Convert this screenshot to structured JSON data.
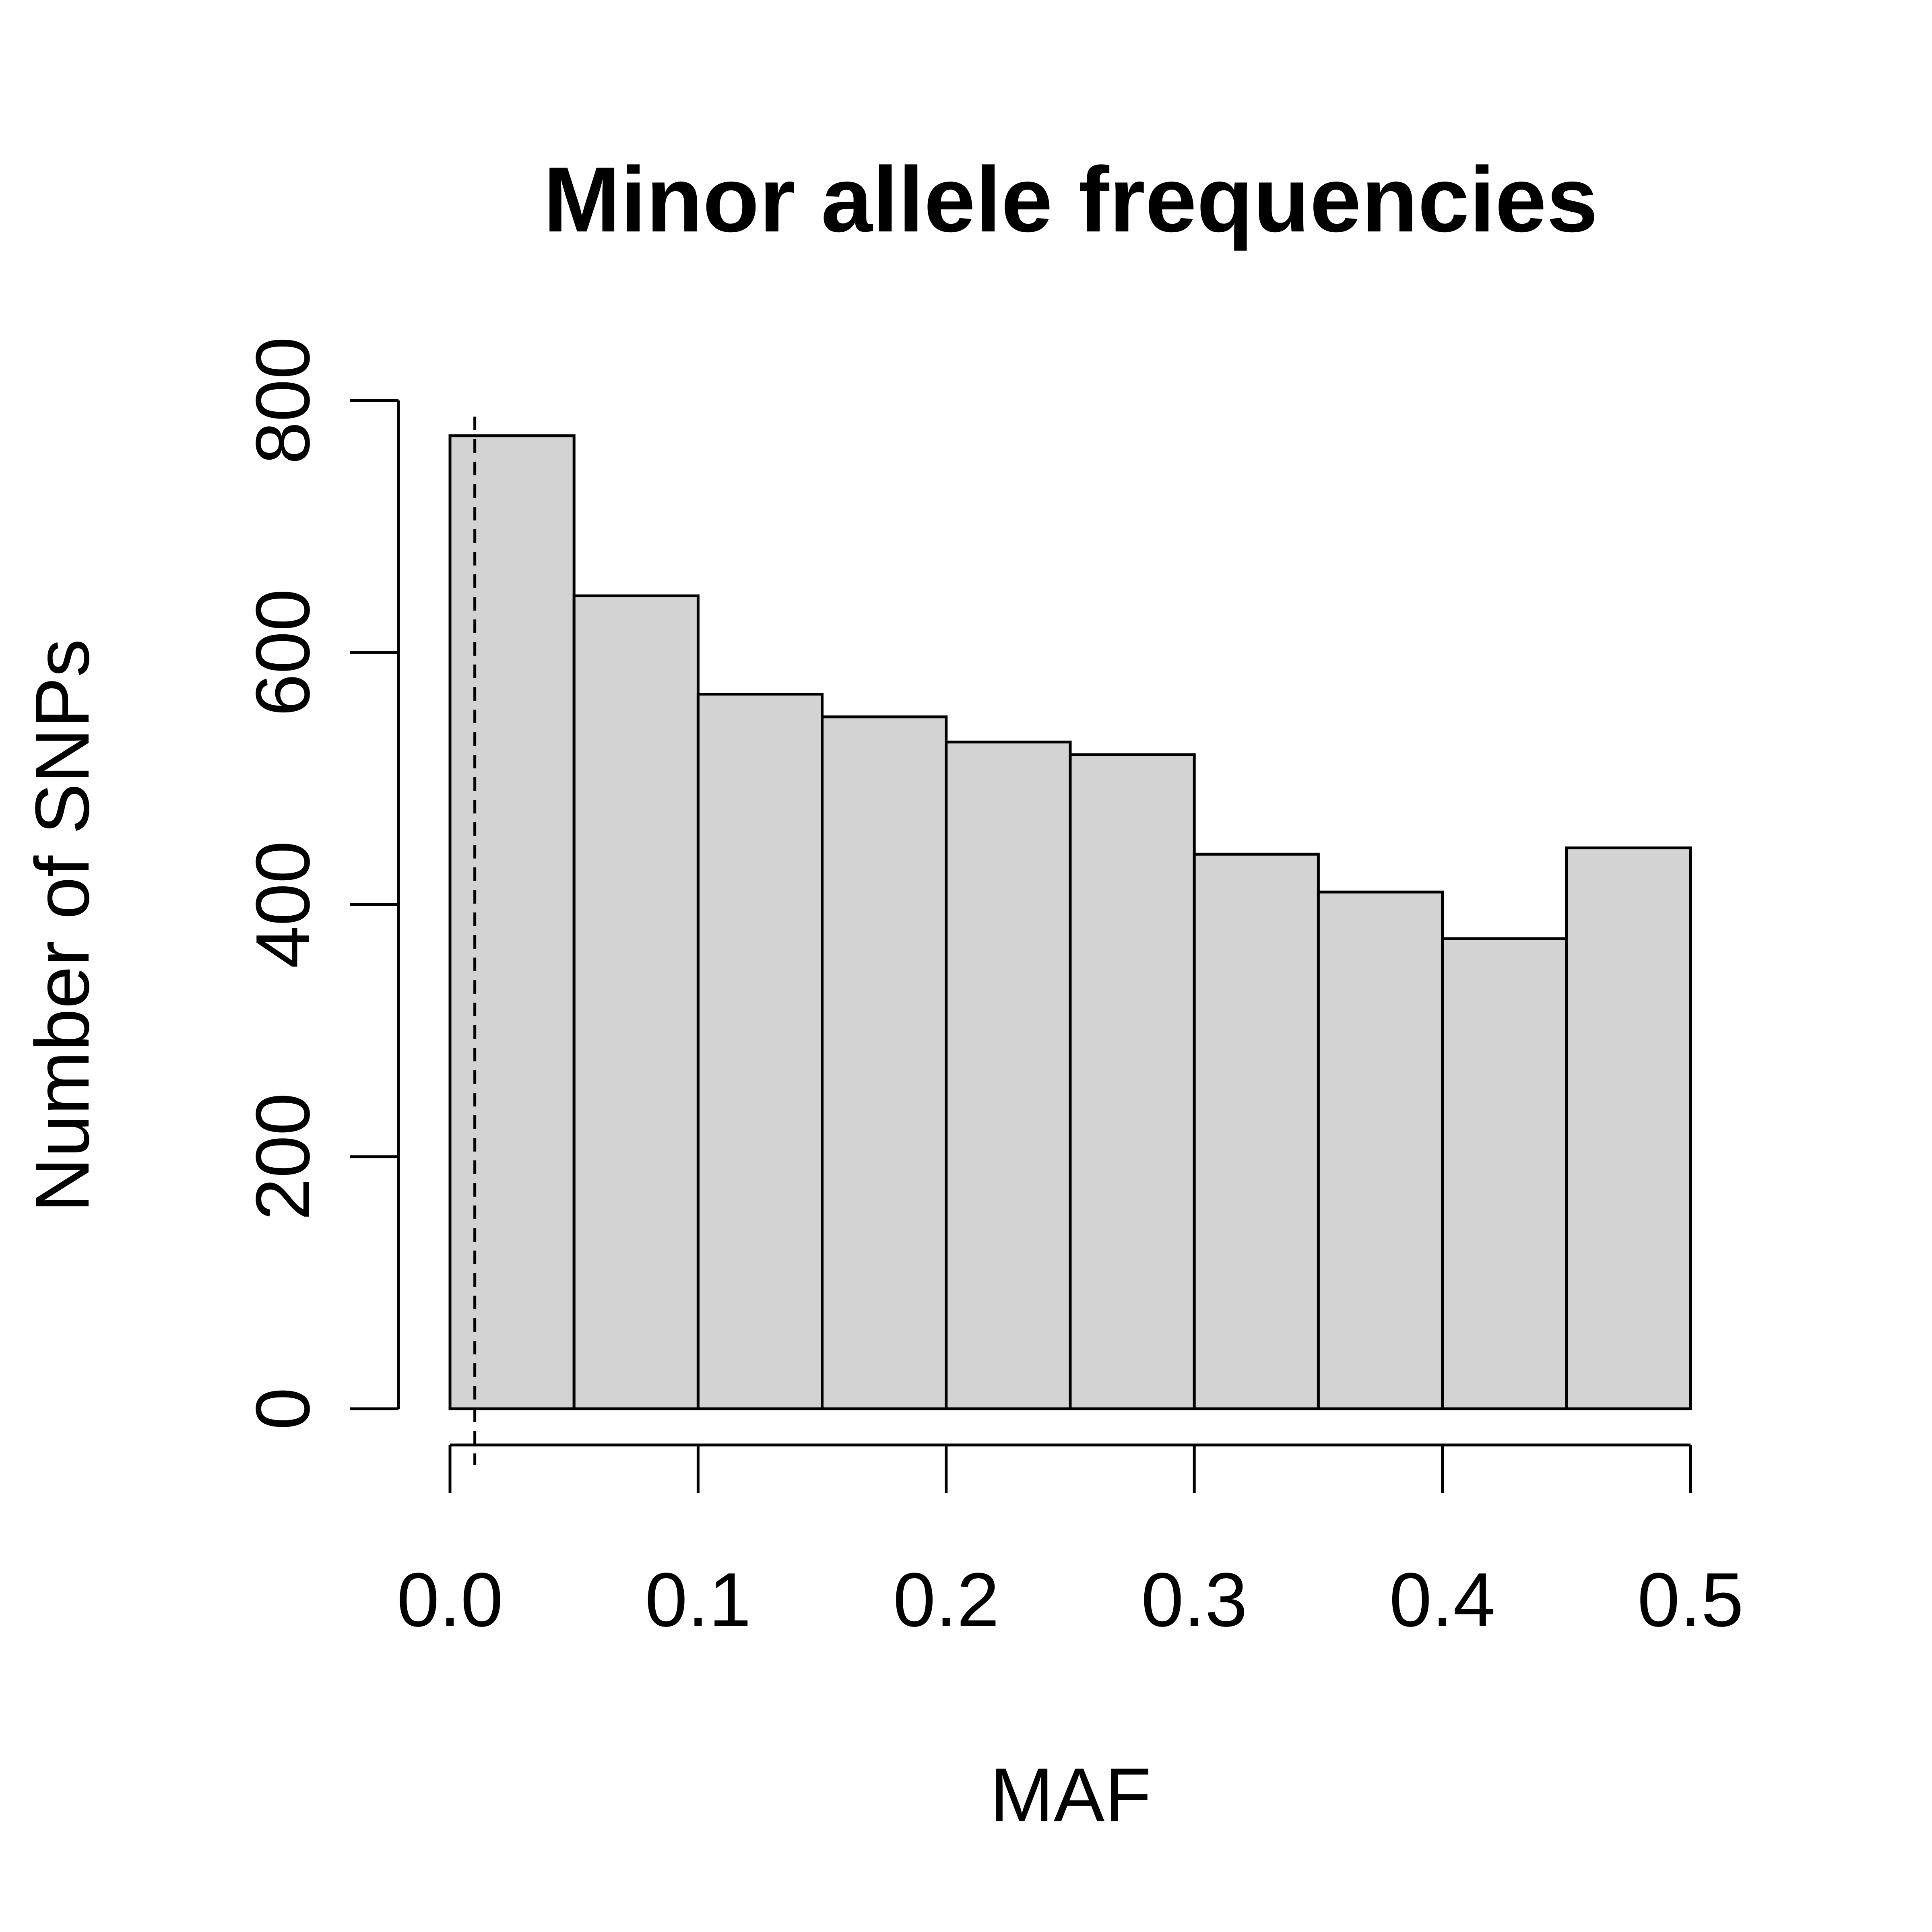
{
  "chart_data": {
    "type": "bar",
    "title": "Minor allele frequencies",
    "xlabel": "MAF",
    "ylabel": "Number of SNPs",
    "bins": [
      {
        "start": 0.0,
        "end": 0.05,
        "count": 772
      },
      {
        "start": 0.05,
        "end": 0.1,
        "count": 645
      },
      {
        "start": 0.1,
        "end": 0.15,
        "count": 567
      },
      {
        "start": 0.15,
        "end": 0.2,
        "count": 549
      },
      {
        "start": 0.2,
        "end": 0.25,
        "count": 529
      },
      {
        "start": 0.25,
        "end": 0.3,
        "count": 519
      },
      {
        "start": 0.3,
        "end": 0.35,
        "count": 440
      },
      {
        "start": 0.35,
        "end": 0.4,
        "count": 410
      },
      {
        "start": 0.4,
        "end": 0.45,
        "count": 373
      },
      {
        "start": 0.45,
        "end": 0.5,
        "count": 445
      }
    ],
    "xlim": [
      0,
      0.5
    ],
    "ylim": [
      0,
      800
    ],
    "xticks": [
      {
        "value": 0.0,
        "label": "0.0"
      },
      {
        "value": 0.1,
        "label": "0.1"
      },
      {
        "value": 0.2,
        "label": "0.2"
      },
      {
        "value": 0.3,
        "label": "0.3"
      },
      {
        "value": 0.4,
        "label": "0.4"
      },
      {
        "value": 0.5,
        "label": "0.5"
      }
    ],
    "yticks": [
      {
        "value": 0,
        "label": "0"
      },
      {
        "value": 200,
        "label": "200"
      },
      {
        "value": 400,
        "label": "400"
      },
      {
        "value": 600,
        "label": "600"
      },
      {
        "value": 800,
        "label": "800"
      }
    ],
    "reference_line": {
      "x": 0.01,
      "style": "dashed"
    },
    "bar_color": "#d3d3d3",
    "line_color": "#000000",
    "grid": false
  }
}
